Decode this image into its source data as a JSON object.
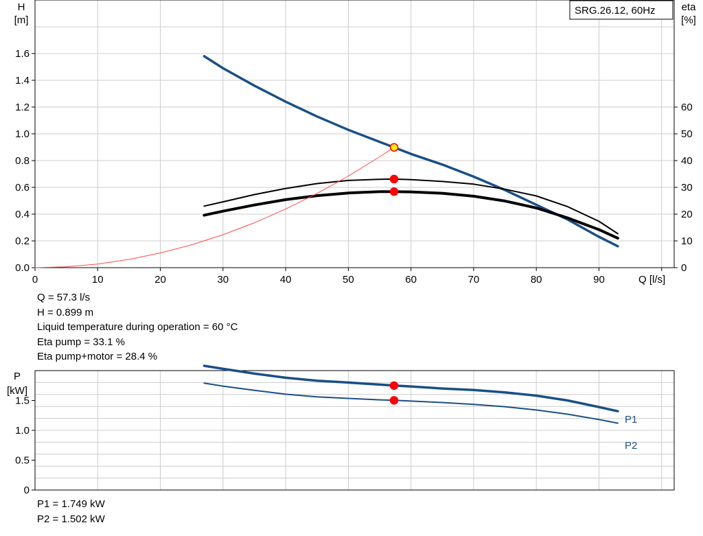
{
  "legend_box": "SRG.26.12, 60Hz",
  "operating_point": {
    "lines": [
      "Q = 57.3 l/s",
      "H = 0.899 m",
      "Liquid temperature during operation = 60 °C",
      "Eta pump = 33.1 %",
      "Eta pump+motor = 28.4 %"
    ]
  },
  "power_point": {
    "lines": [
      "P1 = 1.749 kW",
      "P2 = 1.502 kW"
    ]
  },
  "colors": {
    "head_curve": "#1a4f86",
    "efficiency_curves": "#000000",
    "system_curve": "#ff4a4a",
    "duty_marker": "#ff0000",
    "duty_marker_head": "#ffee00",
    "grid": "#cccccc"
  },
  "chart_data": [
    {
      "type": "line",
      "xlabel": "Q [l/s]",
      "ylabel": [
        "H",
        "[m]"
      ],
      "y2label": [
        "eta",
        "[%]"
      ],
      "xlim": [
        0,
        102
      ],
      "ylim": [
        0,
        2.0
      ],
      "y2lim": [
        0,
        100
      ],
      "xticks": [
        0,
        10,
        20,
        30,
        40,
        50,
        60,
        70,
        80,
        90
      ],
      "yticks": [
        0.0,
        0.2,
        0.4,
        0.6,
        0.8,
        1.0,
        1.2,
        1.4,
        1.6
      ],
      "ytick_labels": [
        "0.0",
        "0.2",
        "0.4",
        "0.6",
        "0.8",
        "1.0",
        "1.2",
        "1.4",
        "1.6"
      ],
      "y2ticks": [
        0,
        10,
        20,
        30,
        40,
        50,
        60
      ],
      "grid": true,
      "series": [
        {
          "axis": "left",
          "color": "#1a4f86",
          "width": 3.5,
          "x": [
            27,
            30,
            35,
            40,
            45,
            50,
            55,
            57.3,
            60,
            65,
            70,
            75,
            80,
            85,
            90,
            93
          ],
          "y": [
            1.58,
            1.49,
            1.36,
            1.24,
            1.13,
            1.03,
            0.94,
            0.899,
            0.85,
            0.77,
            0.68,
            0.58,
            0.47,
            0.36,
            0.23,
            0.16
          ]
        },
        {
          "axis": "right",
          "color": "#000000",
          "width": 2,
          "x": [
            27,
            30,
            35,
            40,
            45,
            50,
            55,
            57.3,
            60,
            65,
            70,
            75,
            80,
            85,
            90,
            93
          ],
          "y": [
            23,
            24.6,
            27.3,
            29.6,
            31.4,
            32.6,
            33.0,
            33.1,
            32.9,
            32.2,
            31.2,
            29.3,
            26.8,
            22.8,
            17.3,
            12.7
          ]
        },
        {
          "axis": "right",
          "color": "#000000",
          "width": 4,
          "x": [
            27,
            30,
            35,
            40,
            45,
            50,
            55,
            57.3,
            60,
            65,
            70,
            75,
            80,
            85,
            90,
            93
          ],
          "y": [
            19.6,
            21.1,
            23.4,
            25.4,
            26.9,
            27.9,
            28.4,
            28.4,
            28.3,
            27.8,
            26.7,
            24.9,
            22.3,
            18.6,
            14.2,
            11.0
          ]
        },
        {
          "axis": "left",
          "color": "#ff4a4a",
          "width": 1,
          "x": [
            0,
            5,
            10,
            15,
            20,
            25,
            30,
            35,
            40,
            45,
            50,
            55,
            57.3
          ],
          "y": [
            0,
            0.0068,
            0.0274,
            0.0616,
            0.1095,
            0.1711,
            0.2464,
            0.3354,
            0.438,
            0.5544,
            0.6845,
            0.8282,
            0.899
          ]
        }
      ],
      "points": [
        {
          "axis": "left",
          "x": 57.3,
          "y": 0.899,
          "fill": "#ffee00",
          "stroke": "#ff0000"
        },
        {
          "axis": "right",
          "x": 57.3,
          "y": 33.1,
          "fill": "#ff0000",
          "stroke": "#ff0000"
        },
        {
          "axis": "right",
          "x": 57.3,
          "y": 28.4,
          "fill": "#ff0000",
          "stroke": "#ff0000"
        }
      ]
    },
    {
      "type": "line",
      "ylabel": [
        "P",
        "[kW]"
      ],
      "xlim": [
        0,
        102
      ],
      "ylim": [
        0,
        2.0
      ],
      "yticks": [
        0,
        0.5,
        1.0,
        1.5
      ],
      "ytick_labels": [
        "0",
        "0.5",
        "1.0",
        "1.5"
      ],
      "grid": true,
      "series": [
        {
          "name": "P1",
          "color": "#1a4f86",
          "width": 3.5,
          "x": [
            27,
            30,
            35,
            40,
            45,
            50,
            55,
            57.3,
            60,
            65,
            70,
            75,
            80,
            85,
            90,
            93
          ],
          "y": [
            2.08,
            2.03,
            1.95,
            1.88,
            1.83,
            1.8,
            1.765,
            1.749,
            1.735,
            1.7,
            1.675,
            1.635,
            1.58,
            1.5,
            1.39,
            1.32
          ]
        },
        {
          "name": "P2",
          "color": "#1a4f86",
          "width": 2,
          "x": [
            27,
            30,
            35,
            40,
            45,
            50,
            55,
            57.3,
            60,
            65,
            70,
            75,
            80,
            85,
            90,
            93
          ],
          "y": [
            1.79,
            1.74,
            1.67,
            1.605,
            1.56,
            1.535,
            1.51,
            1.502,
            1.49,
            1.465,
            1.435,
            1.395,
            1.34,
            1.27,
            1.18,
            1.12
          ]
        }
      ],
      "points": [
        {
          "x": 57.3,
          "y": 1.749,
          "fill": "#ff0000",
          "stroke": "#ff0000"
        },
        {
          "x": 57.3,
          "y": 1.502,
          "fill": "#ff0000",
          "stroke": "#ff0000"
        }
      ]
    }
  ]
}
